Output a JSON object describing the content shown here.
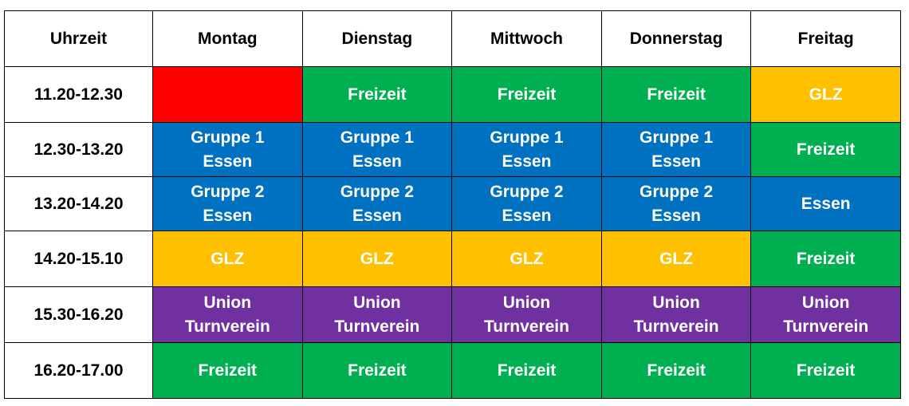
{
  "colors": {
    "red": "#ff0000",
    "green": "#00b050",
    "blue": "#0070c0",
    "yellow": "#ffc000",
    "purple": "#7030a0"
  },
  "headers": [
    "Uhrzeit",
    "Montag",
    "Dienstag",
    "Mittwoch",
    "Donnerstag",
    "Freitag"
  ],
  "rows": [
    {
      "time": "11.20-12.30",
      "cells": [
        {
          "color": "red",
          "lines": []
        },
        {
          "color": "green",
          "lines": [
            "Freizeit"
          ]
        },
        {
          "color": "green",
          "lines": [
            "Freizeit"
          ]
        },
        {
          "color": "green",
          "lines": [
            "Freizeit"
          ]
        },
        {
          "color": "yellow",
          "lines": [
            "GLZ"
          ]
        }
      ]
    },
    {
      "time": "12.30-13.20",
      "cells": [
        {
          "color": "blue",
          "lines": [
            "Gruppe 1",
            "Essen"
          ]
        },
        {
          "color": "blue",
          "lines": [
            "Gruppe 1",
            "Essen"
          ]
        },
        {
          "color": "blue",
          "lines": [
            "Gruppe 1",
            "Essen"
          ]
        },
        {
          "color": "blue",
          "lines": [
            "Gruppe 1",
            "Essen"
          ]
        },
        {
          "color": "green",
          "lines": [
            "Freizeit"
          ]
        }
      ]
    },
    {
      "time": "13.20-14.20",
      "cells": [
        {
          "color": "blue",
          "lines": [
            "Gruppe 2",
            "Essen"
          ]
        },
        {
          "color": "blue",
          "lines": [
            "Gruppe 2",
            "Essen"
          ]
        },
        {
          "color": "blue",
          "lines": [
            "Gruppe 2",
            "Essen"
          ]
        },
        {
          "color": "blue",
          "lines": [
            "Gruppe 2",
            "Essen"
          ]
        },
        {
          "color": "blue",
          "lines": [
            "Essen"
          ]
        }
      ]
    },
    {
      "time": "14.20-15.10",
      "cells": [
        {
          "color": "yellow",
          "lines": [
            "GLZ"
          ]
        },
        {
          "color": "yellow",
          "lines": [
            "GLZ"
          ]
        },
        {
          "color": "yellow",
          "lines": [
            "GLZ"
          ]
        },
        {
          "color": "yellow",
          "lines": [
            "GLZ"
          ]
        },
        {
          "color": "green",
          "lines": [
            "Freizeit"
          ]
        }
      ]
    },
    {
      "time": "15.30-16.20",
      "cells": [
        {
          "color": "purple",
          "lines": [
            "Union",
            "Turnverein"
          ]
        },
        {
          "color": "purple",
          "lines": [
            "Union",
            "Turnverein"
          ]
        },
        {
          "color": "purple",
          "lines": [
            "Union",
            "Turnverein"
          ]
        },
        {
          "color": "purple",
          "lines": [
            "Union",
            "Turnverein"
          ]
        },
        {
          "color": "purple",
          "lines": [
            "Union",
            "Turnverein"
          ]
        }
      ]
    },
    {
      "time": "16.20-17.00",
      "cells": [
        {
          "color": "green",
          "lines": [
            "Freizeit"
          ]
        },
        {
          "color": "green",
          "lines": [
            "Freizeit"
          ]
        },
        {
          "color": "green",
          "lines": [
            "Freizeit"
          ]
        },
        {
          "color": "green",
          "lines": [
            "Freizeit"
          ]
        },
        {
          "color": "green",
          "lines": [
            "Freizeit"
          ]
        }
      ]
    }
  ]
}
